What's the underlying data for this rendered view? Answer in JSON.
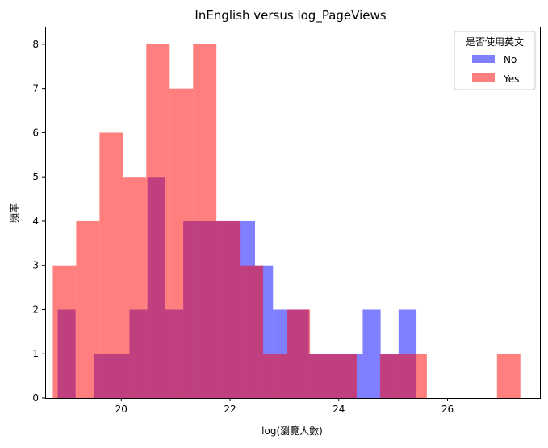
{
  "chart_data": {
    "type": "bar",
    "title": "InEnglish versus log_PageViews",
    "xlabel": "log(瀏覽人數)",
    "ylabel": "頻率",
    "xlim": [
      18.6,
      27.7
    ],
    "ylim": [
      0,
      8.4
    ],
    "xticks": [
      20,
      22,
      24,
      26
    ],
    "yticks": [
      0,
      1,
      2,
      3,
      4,
      5,
      6,
      7,
      8
    ],
    "legend": {
      "title": "是否使用英文",
      "position": "top-right"
    },
    "series": [
      {
        "name": "No",
        "color": "#0000ff",
        "opacity": 0.5,
        "bins": [
          [
            18.83,
            19.16,
            2
          ],
          [
            19.49,
            20.15,
            1
          ],
          [
            20.15,
            20.48,
            2
          ],
          [
            20.48,
            20.81,
            5
          ],
          [
            20.81,
            21.14,
            2
          ],
          [
            21.14,
            22.46,
            4
          ],
          [
            22.46,
            22.79,
            3
          ],
          [
            22.79,
            23.12,
            2
          ],
          [
            23.12,
            23.45,
            2
          ],
          [
            23.45,
            24.44,
            1
          ],
          [
            24.44,
            24.77,
            2
          ],
          [
            24.77,
            25.1,
            1
          ],
          [
            25.1,
            25.43,
            2
          ]
        ]
      },
      {
        "name": "Yes",
        "color": "#ff0000",
        "opacity": 0.5,
        "bins": [
          [
            18.74,
            19.17,
            3
          ],
          [
            19.17,
            19.6,
            4
          ],
          [
            19.6,
            20.03,
            6
          ],
          [
            20.03,
            20.46,
            5
          ],
          [
            20.46,
            20.89,
            8
          ],
          [
            20.89,
            21.32,
            7
          ],
          [
            21.32,
            21.75,
            8
          ],
          [
            21.75,
            22.18,
            4
          ],
          [
            22.18,
            22.61,
            3
          ],
          [
            22.61,
            23.04,
            1
          ],
          [
            23.04,
            23.47,
            2
          ],
          [
            23.47,
            23.9,
            1
          ],
          [
            23.9,
            24.33,
            1
          ],
          [
            24.33,
            24.76,
            0
          ],
          [
            24.76,
            25.19,
            1
          ],
          [
            25.19,
            25.62,
            1
          ],
          [
            25.62,
            26.05,
            0
          ],
          [
            26.05,
            26.48,
            0
          ],
          [
            26.48,
            26.91,
            0
          ],
          [
            26.91,
            27.34,
            1
          ]
        ]
      }
    ]
  }
}
